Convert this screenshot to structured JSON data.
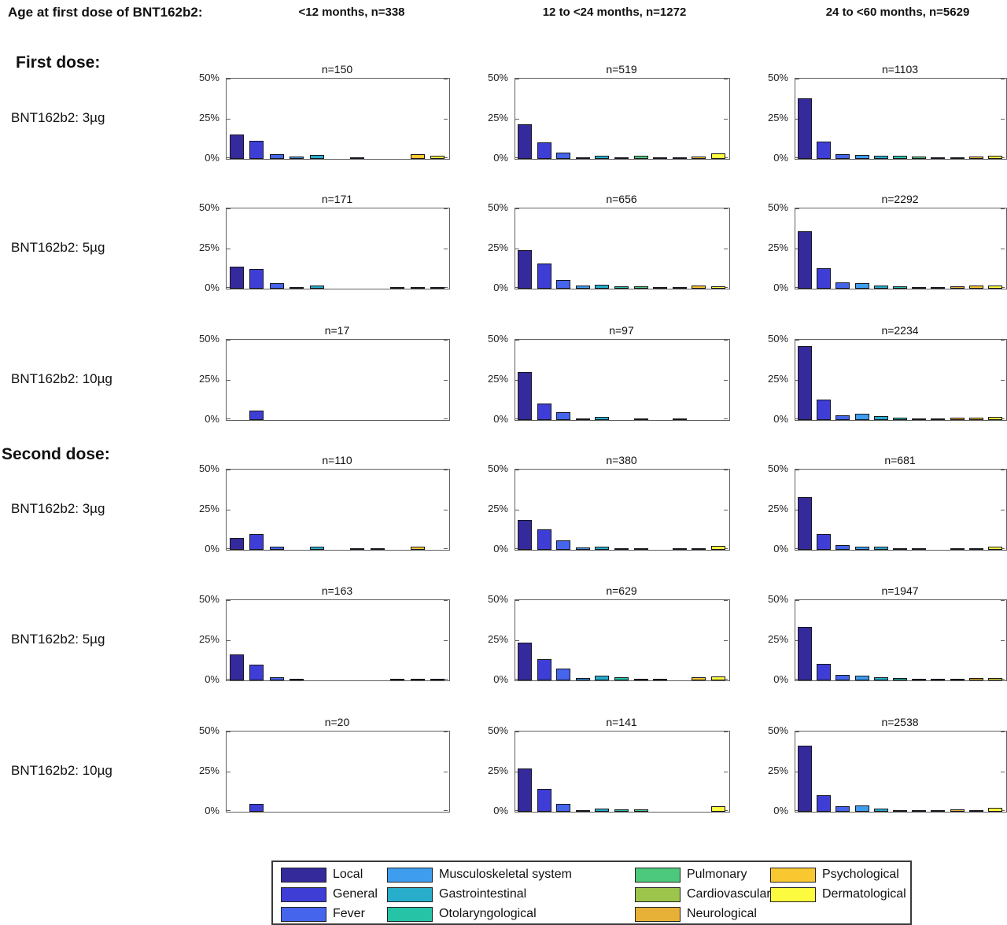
{
  "header": {
    "title": "Age at first dose of BNT162b2:",
    "col_headers": [
      "<12 months, n=338",
      "12 to <24 months, n=1272",
      "24 to <60 months, n=5629"
    ]
  },
  "sections": [
    {
      "label": "First dose:",
      "at_row": 0
    },
    {
      "label": "Second dose:",
      "at_row": 3
    }
  ],
  "chart_data": {
    "type": "bar",
    "ylim": [
      0,
      50
    ],
    "yticks": [
      {
        "label": "50%",
        "value": 50
      },
      {
        "label": "25%",
        "value": 25
      },
      {
        "label": "0%",
        "value": 0
      }
    ],
    "categories": [
      "Local",
      "General",
      "Fever",
      "Musculoskeletal system",
      "Gastrointestinal",
      "Otolaryngological",
      "Pulmonary",
      "Cardiovascular",
      "Neurological",
      "Psychological",
      "Dermatological"
    ],
    "colors": [
      "#352A9B",
      "#3E3ED6",
      "#4565EC",
      "#3F9DF0",
      "#28ADCB",
      "#27C3A7",
      "#4DC97D",
      "#9DC44B",
      "#E7B137",
      "#F9C730",
      "#FCFB3F"
    ],
    "legend_position": "bottom",
    "grid": false,
    "rows": [
      {
        "label": "BNT162b2: 3µg",
        "subplots": [
          {
            "n_label": "n=150",
            "values": [
              15,
              11.5,
              3,
              1.6,
              2.3,
              0,
              0.8,
              0,
              0,
              3,
              2
            ]
          },
          {
            "n_label": "n=519",
            "values": [
              21.5,
              10.5,
              4,
              0.7,
              2,
              0.5,
              2,
              0.2,
              0.3,
              1.5,
              3.5
            ]
          },
          {
            "n_label": "n=1103",
            "values": [
              37.5,
              11,
              3,
              2.3,
              2.2,
              1.8,
              1.5,
              0.5,
              1.2,
              1.3,
              1.8
            ]
          }
        ]
      },
      {
        "label": "BNT162b2: 5µg",
        "subplots": [
          {
            "n_label": "n=171",
            "values": [
              13.5,
              12.3,
              3.5,
              1.2,
              1.8,
              0,
              0,
              0,
              0.6,
              1.2,
              0.6
            ]
          },
          {
            "n_label": "n=656",
            "values": [
              24,
              15.5,
              5.5,
              2,
              2.5,
              1.5,
              1.3,
              0.5,
              0.7,
              1.8,
              1.5
            ]
          },
          {
            "n_label": "n=2292",
            "values": [
              36,
              12.5,
              4,
              3.2,
              2.2,
              1.3,
              1.2,
              0.4,
              1.3,
              2,
              1.8
            ]
          }
        ]
      },
      {
        "label": "BNT162b2: 10µg",
        "subplots": [
          {
            "n_label": "n=17",
            "values": [
              0,
              6,
              0,
              0,
              0,
              0,
              0,
              0,
              0,
              0,
              0
            ]
          },
          {
            "n_label": "n=97",
            "values": [
              30,
              10.5,
              5,
              1,
              2,
              0,
              1,
              0,
              1,
              0,
              0
            ]
          },
          {
            "n_label": "n=2234",
            "values": [
              46,
              12.5,
              2.8,
              4,
              2.5,
              1.7,
              0.8,
              0.5,
              1.5,
              1.5,
              2
            ]
          }
        ]
      },
      {
        "label": "BNT162b2: 3µg",
        "subplots": [
          {
            "n_label": "n=110",
            "values": [
              7.3,
              10,
              1.8,
              0,
              1.8,
              0,
              0.9,
              0.9,
              0,
              1.8,
              0
            ]
          },
          {
            "n_label": "n=380",
            "values": [
              18.5,
              12.5,
              6,
              1.3,
              2,
              0.5,
              1,
              0,
              0.3,
              1,
              2.5
            ]
          },
          {
            "n_label": "n=681",
            "values": [
              33,
              10,
              3,
              2,
              2,
              1,
              0.5,
              0,
              0.5,
              1,
              1.8
            ]
          }
        ]
      },
      {
        "label": "BNT162b2: 5µg",
        "subplots": [
          {
            "n_label": "n=163",
            "values": [
              16,
              10,
              1.8,
              1.2,
              0,
              0,
              0,
              0,
              0.6,
              1.2,
              0.6
            ]
          },
          {
            "n_label": "n=629",
            "values": [
              23.5,
              13,
              7.5,
              1.5,
              3,
              1.8,
              1.2,
              0.5,
              0,
              2,
              2.3
            ]
          },
          {
            "n_label": "n=1947",
            "values": [
              33.5,
              10.5,
              3.5,
              2.8,
              2,
              1.4,
              0.6,
              0.3,
              0.8,
              1.7,
              1.6
            ]
          }
        ]
      },
      {
        "label": "BNT162b2: 10µg",
        "subplots": [
          {
            "n_label": "n=20",
            "values": [
              0,
              5,
              0,
              0,
              0,
              0,
              0,
              0,
              0,
              0,
              0
            ]
          },
          {
            "n_label": "n=141",
            "values": [
              27,
              14,
              5,
              0.7,
              2,
              1.4,
              1.4,
              0,
              0,
              0,
              3.5
            ]
          },
          {
            "n_label": "n=2538",
            "values": [
              41,
              10.5,
              3.5,
              4,
              2.2,
              1,
              1,
              0.4,
              1.3,
              1,
              2.5
            ]
          }
        ]
      }
    ]
  }
}
